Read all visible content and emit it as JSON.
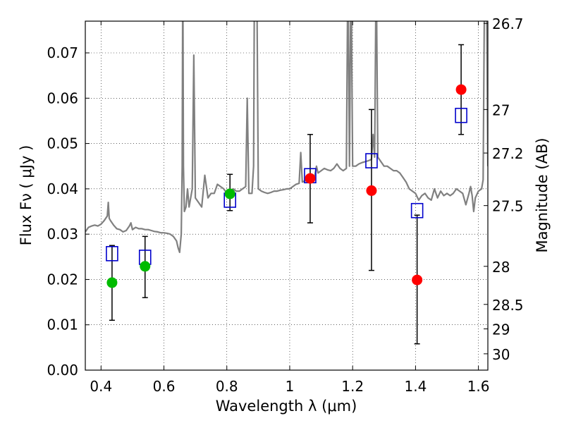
{
  "chart_data": {
    "type": "scatter",
    "xlabel": "Wavelength  λ (μm)",
    "ylabel": "Flux  Fν  ( μJy )",
    "y2label": "Magnitude (AB)",
    "xlim": [
      0.35,
      1.63
    ],
    "ylim": [
      0.0,
      0.077
    ],
    "x_ticks": [
      0.4,
      0.6,
      0.8,
      1.0,
      1.2,
      1.4,
      1.6
    ],
    "x_tick_labels": [
      "0.4",
      "0.6",
      "0.8",
      "1",
      "1.2",
      "1.4",
      "1.6"
    ],
    "y_ticks": [
      0.0,
      0.01,
      0.02,
      0.03,
      0.04,
      0.05,
      0.06,
      0.07
    ],
    "y_tick_labels": [
      "0.00",
      "0.01",
      "0.02",
      "0.03",
      "0.04",
      "0.05",
      "0.06",
      "0.07"
    ],
    "y2_ticks": [
      {
        "label": "26.7",
        "flux": 0.0765
      },
      {
        "label": "27",
        "flux": 0.0575
      },
      {
        "label": "27.2",
        "flux": 0.0479
      },
      {
        "label": "27.5",
        "flux": 0.0363
      },
      {
        "label": "28",
        "flux": 0.0229
      },
      {
        "label": "28.5",
        "flux": 0.0145
      },
      {
        "label": "29",
        "flux": 0.0091
      },
      {
        "label": "30",
        "flux": 0.0036
      }
    ],
    "grid": true,
    "colors": {
      "spectrum": "#808080",
      "green_points": "#00bb00",
      "red_points": "#ff0000",
      "model_squares": "#0000cc",
      "error_bars": "#000000"
    },
    "series": [
      {
        "kind": "errorbar",
        "x": [
          0.435,
          0.54,
          0.81,
          1.065,
          1.26,
          1.405,
          1.545
        ],
        "lower": [
          0.011,
          0.016,
          0.0352,
          0.0325,
          0.022,
          0.0058,
          0.052
        ],
        "upper": [
          0.0275,
          0.0295,
          0.0432,
          0.052,
          0.0575,
          0.0342,
          0.0718
        ]
      },
      {
        "kind": "model",
        "marker": "square",
        "x": [
          0.435,
          0.54,
          0.81,
          1.065,
          1.26,
          1.405,
          1.545
        ],
        "y": [
          0.0257,
          0.0249,
          0.0375,
          0.0429,
          0.0462,
          0.0352,
          0.0562
        ]
      },
      {
        "kind": "observed",
        "marker": "circle",
        "color": "green",
        "x": [
          0.435,
          0.54,
          0.81
        ],
        "y": [
          0.0193,
          0.0229,
          0.0389
        ]
      },
      {
        "kind": "observed",
        "marker": "circle",
        "color": "red",
        "x": [
          1.065,
          1.26,
          1.405,
          1.545
        ],
        "y": [
          0.0423,
          0.0396,
          0.0199,
          0.0619
        ]
      }
    ],
    "spectrum": {
      "kind": "line",
      "points": [
        [
          0.35,
          0.0305
        ],
        [
          0.36,
          0.0315
        ],
        [
          0.37,
          0.0318
        ],
        [
          0.38,
          0.032
        ],
        [
          0.39,
          0.0318
        ],
        [
          0.4,
          0.0322
        ],
        [
          0.41,
          0.033
        ],
        [
          0.415,
          0.0335
        ],
        [
          0.42,
          0.034
        ],
        [
          0.423,
          0.037
        ],
        [
          0.426,
          0.0335
        ],
        [
          0.43,
          0.033
        ],
        [
          0.44,
          0.032
        ],
        [
          0.45,
          0.0312
        ],
        [
          0.46,
          0.031
        ],
        [
          0.47,
          0.0305
        ],
        [
          0.48,
          0.0308
        ],
        [
          0.49,
          0.0318
        ],
        [
          0.495,
          0.0325
        ],
        [
          0.5,
          0.031
        ],
        [
          0.51,
          0.0315
        ],
        [
          0.52,
          0.0312
        ],
        [
          0.53,
          0.0312
        ],
        [
          0.54,
          0.031
        ],
        [
          0.55,
          0.031
        ],
        [
          0.56,
          0.0308
        ],
        [
          0.57,
          0.0306
        ],
        [
          0.58,
          0.0305
        ],
        [
          0.59,
          0.0303
        ],
        [
          0.6,
          0.0303
        ],
        [
          0.61,
          0.0302
        ],
        [
          0.62,
          0.03
        ],
        [
          0.63,
          0.0295
        ],
        [
          0.64,
          0.0285
        ],
        [
          0.645,
          0.027
        ],
        [
          0.65,
          0.026
        ],
        [
          0.655,
          0.03
        ],
        [
          0.658,
          0.045
        ],
        [
          0.66,
          0.09
        ],
        [
          0.662,
          0.045
        ],
        [
          0.665,
          0.035
        ],
        [
          0.67,
          0.036
        ],
        [
          0.675,
          0.04
        ],
        [
          0.68,
          0.036
        ],
        [
          0.69,
          0.04
        ],
        [
          0.695,
          0.0695
        ],
        [
          0.7,
          0.038
        ],
        [
          0.71,
          0.037
        ],
        [
          0.72,
          0.036
        ],
        [
          0.73,
          0.043
        ],
        [
          0.74,
          0.038
        ],
        [
          0.75,
          0.039
        ],
        [
          0.76,
          0.039
        ],
        [
          0.77,
          0.041
        ],
        [
          0.78,
          0.0405
        ],
        [
          0.79,
          0.04
        ],
        [
          0.8,
          0.039
        ],
        [
          0.81,
          0.0395
        ],
        [
          0.82,
          0.04
        ],
        [
          0.83,
          0.0395
        ],
        [
          0.84,
          0.0395
        ],
        [
          0.85,
          0.04
        ],
        [
          0.86,
          0.0405
        ],
        [
          0.865,
          0.06
        ],
        [
          0.87,
          0.039
        ],
        [
          0.88,
          0.039
        ],
        [
          0.885,
          0.045
        ],
        [
          0.888,
          0.09
        ],
        [
          0.895,
          0.09
        ],
        [
          0.9,
          0.04
        ],
        [
          0.91,
          0.0395
        ],
        [
          0.92,
          0.0392
        ],
        [
          0.93,
          0.039
        ],
        [
          0.94,
          0.0392
        ],
        [
          0.95,
          0.0395
        ],
        [
          0.96,
          0.0395
        ],
        [
          0.97,
          0.0397
        ],
        [
          0.98,
          0.0398
        ],
        [
          0.99,
          0.04
        ],
        [
          1.0,
          0.04
        ],
        [
          1.01,
          0.0405
        ],
        [
          1.02,
          0.041
        ],
        [
          1.03,
          0.0412
        ],
        [
          1.035,
          0.048
        ],
        [
          1.04,
          0.0415
        ],
        [
          1.05,
          0.0418
        ],
        [
          1.06,
          0.042
        ],
        [
          1.07,
          0.0422
        ],
        [
          1.08,
          0.043
        ],
        [
          1.085,
          0.045
        ],
        [
          1.09,
          0.0435
        ],
        [
          1.1,
          0.044
        ],
        [
          1.11,
          0.0445
        ],
        [
          1.12,
          0.0442
        ],
        [
          1.13,
          0.044
        ],
        [
          1.14,
          0.0445
        ],
        [
          1.15,
          0.0455
        ],
        [
          1.16,
          0.0445
        ],
        [
          1.17,
          0.044
        ],
        [
          1.18,
          0.0445
        ],
        [
          1.185,
          0.09
        ],
        [
          1.19,
          0.045
        ],
        [
          1.195,
          0.09
        ],
        [
          1.2,
          0.045
        ],
        [
          1.21,
          0.045
        ],
        [
          1.22,
          0.0455
        ],
        [
          1.23,
          0.0458
        ],
        [
          1.24,
          0.046
        ],
        [
          1.25,
          0.0462
        ],
        [
          1.26,
          0.0465
        ],
        [
          1.265,
          0.052
        ],
        [
          1.27,
          0.047
        ],
        [
          1.275,
          0.09
        ],
        [
          1.28,
          0.047
        ],
        [
          1.29,
          0.046
        ],
        [
          1.3,
          0.045
        ],
        [
          1.31,
          0.045
        ],
        [
          1.32,
          0.0445
        ],
        [
          1.33,
          0.044
        ],
        [
          1.34,
          0.044
        ],
        [
          1.35,
          0.0435
        ],
        [
          1.36,
          0.0425
        ],
        [
          1.37,
          0.0415
        ],
        [
          1.38,
          0.04
        ],
        [
          1.39,
          0.0395
        ],
        [
          1.4,
          0.039
        ],
        [
          1.41,
          0.0375
        ],
        [
          1.42,
          0.0385
        ],
        [
          1.43,
          0.039
        ],
        [
          1.44,
          0.038
        ],
        [
          1.45,
          0.0375
        ],
        [
          1.46,
          0.04
        ],
        [
          1.47,
          0.038
        ],
        [
          1.48,
          0.0395
        ],
        [
          1.49,
          0.0385
        ],
        [
          1.5,
          0.039
        ],
        [
          1.51,
          0.0385
        ],
        [
          1.52,
          0.039
        ],
        [
          1.53,
          0.04
        ],
        [
          1.54,
          0.0395
        ],
        [
          1.55,
          0.039
        ],
        [
          1.56,
          0.0365
        ],
        [
          1.57,
          0.039
        ],
        [
          1.575,
          0.0405
        ],
        [
          1.58,
          0.0385
        ],
        [
          1.585,
          0.035
        ],
        [
          1.59,
          0.038
        ],
        [
          1.6,
          0.0395
        ],
        [
          1.61,
          0.04
        ],
        [
          1.615,
          0.042
        ],
        [
          1.62,
          0.09
        ],
        [
          1.625,
          0.09
        ],
        [
          1.63,
          0.045
        ]
      ]
    }
  }
}
